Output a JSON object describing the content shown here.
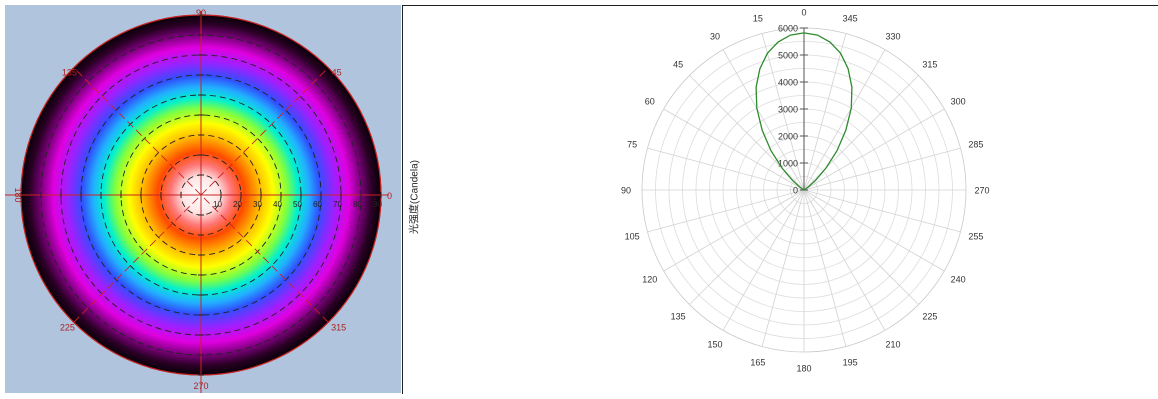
{
  "left_chart": {
    "angle_labels": [
      {
        "angle": 0,
        "label": "0"
      },
      {
        "angle": 45,
        "label": "45"
      },
      {
        "angle": 90,
        "label": "90"
      },
      {
        "angle": 135,
        "label": "135"
      },
      {
        "angle": 180,
        "label": "180"
      },
      {
        "angle": 225,
        "label": "225"
      },
      {
        "angle": 270,
        "label": "270"
      },
      {
        "angle": 315,
        "label": "315"
      }
    ],
    "radius_labels": [
      "10",
      "20",
      "30",
      "40",
      "50",
      "60",
      "70",
      "80",
      "90"
    ],
    "colors": {
      "background": "#b0c4de",
      "grid": "#cc2222",
      "label": "#aa2222"
    }
  },
  "chart_data": {
    "type": "polar",
    "ylabel": "光强度(Candela)",
    "r_ticks": [
      0,
      1000,
      2000,
      3000,
      4000,
      5000,
      6000
    ],
    "r_max": 6000,
    "angle_labels": [
      "0",
      "15",
      "30",
      "45",
      "60",
      "75",
      "90",
      "105",
      "120",
      "135",
      "150",
      "165",
      "180",
      "195",
      "210",
      "225",
      "240",
      "255",
      "270",
      "285",
      "300",
      "315",
      "330",
      "345"
    ],
    "series": [
      {
        "color": "#2e8b2e",
        "points": [
          {
            "angle": 0,
            "value": 5820
          },
          {
            "angle": 5,
            "value": 5760
          },
          {
            "angle": 10,
            "value": 5560
          },
          {
            "angle": 15,
            "value": 5240
          },
          {
            "angle": 20,
            "value": 4780
          },
          {
            "angle": 25,
            "value": 4200
          },
          {
            "angle": 30,
            "value": 3500
          },
          {
            "angle": 35,
            "value": 2700
          },
          {
            "angle": 40,
            "value": 1900
          },
          {
            "angle": 45,
            "value": 1150
          },
          {
            "angle": 50,
            "value": 560
          },
          {
            "angle": 55,
            "value": 200
          },
          {
            "angle": 60,
            "value": 40
          },
          {
            "angle": 65,
            "value": 0
          },
          {
            "angle": 295,
            "value": 0
          },
          {
            "angle": 300,
            "value": 40
          },
          {
            "angle": 305,
            "value": 200
          },
          {
            "angle": 310,
            "value": 560
          },
          {
            "angle": 315,
            "value": 1150
          },
          {
            "angle": 320,
            "value": 1900
          },
          {
            "angle": 325,
            "value": 2700
          },
          {
            "angle": 330,
            "value": 3500
          },
          {
            "angle": 335,
            "value": 4200
          },
          {
            "angle": 340,
            "value": 4780
          },
          {
            "angle": 345,
            "value": 5240
          },
          {
            "angle": 350,
            "value": 5560
          },
          {
            "angle": 355,
            "value": 5760
          },
          {
            "angle": 360,
            "value": 5820
          }
        ]
      }
    ],
    "grid": true
  }
}
